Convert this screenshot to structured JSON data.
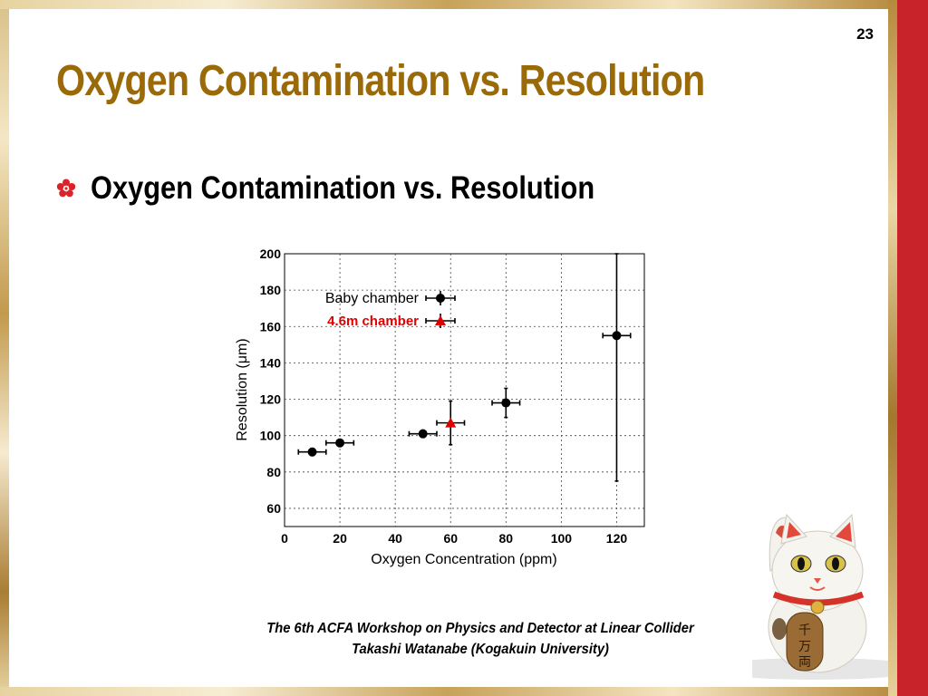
{
  "slide": {
    "number": "23",
    "title": "Oxygen Contamination vs. Resolution",
    "bullet": "Oxygen Contamination vs. Resolution",
    "footer_line1": "The 6th ACFA Workshop on Physics and Detector at Linear Collider",
    "footer_line2": "Takashi Watanabe (Kogakuin University)"
  },
  "colors": {
    "title": "#9a6a08",
    "accent_red": "#c8232a",
    "series_baby": "#000000",
    "series_46m": "#e00000"
  },
  "icons": {
    "bullet": "flower-bullet-icon",
    "mascot": "maneki-neko-cat"
  },
  "chart_data": {
    "type": "scatter",
    "xlabel": "Oxygen Concentration (ppm)",
    "ylabel": "Resolution (μm)",
    "xlim": [
      0,
      130
    ],
    "ylim": [
      50,
      200
    ],
    "x_ticks": [
      0,
      20,
      40,
      60,
      80,
      100,
      120
    ],
    "y_ticks": [
      60,
      80,
      100,
      120,
      140,
      160,
      180,
      200
    ],
    "grid": true,
    "legend_position": "top-left",
    "series": [
      {
        "name": "Baby chamber",
        "marker": "circle",
        "color": "#000000",
        "points": [
          {
            "x": 10,
            "y": 91,
            "xerr": 5,
            "yerr": 2
          },
          {
            "x": 20,
            "y": 96,
            "xerr": 5,
            "yerr": 2
          },
          {
            "x": 50,
            "y": 101,
            "xerr": 5,
            "yerr": 2
          },
          {
            "x": 80,
            "y": 118,
            "xerr": 5,
            "yerr": 8
          },
          {
            "x": 120,
            "y": 155,
            "xerr": 5,
            "yerr": 80
          }
        ]
      },
      {
        "name": "4.6m chamber",
        "marker": "triangle",
        "color": "#e00000",
        "points": [
          {
            "x": 60,
            "y": 107,
            "xerr": 5,
            "yerr": 12
          }
        ]
      }
    ]
  }
}
